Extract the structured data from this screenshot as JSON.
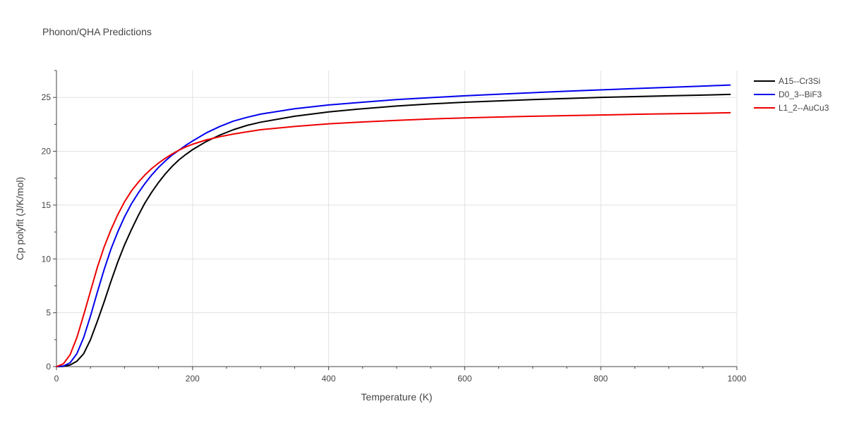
{
  "chart_data": {
    "type": "line",
    "title": "Phonon/QHA Predictions",
    "xlabel": "Temperature (K)",
    "ylabel": "Cp polyfit (J/K/mol)",
    "xlim": [
      0,
      1000
    ],
    "ylim": [
      0,
      27.5
    ],
    "xticks": [
      0,
      200,
      400,
      600,
      800,
      1000
    ],
    "yticks": [
      0,
      5,
      10,
      15,
      20,
      25
    ],
    "grid": true,
    "legend_position": "top-right",
    "series": [
      {
        "name": "A15--Cr3Si",
        "color": "#000000",
        "x": [
          0,
          10,
          20,
          30,
          40,
          50,
          60,
          70,
          80,
          90,
          100,
          110,
          120,
          130,
          140,
          150,
          160,
          170,
          180,
          190,
          200,
          220,
          240,
          260,
          280,
          300,
          350,
          400,
          450,
          500,
          550,
          600,
          650,
          700,
          750,
          800,
          850,
          900,
          950,
          990
        ],
        "y": [
          0,
          0.02,
          0.15,
          0.5,
          1.2,
          2.5,
          4.2,
          6.0,
          7.9,
          9.7,
          11.3,
          12.7,
          14.0,
          15.2,
          16.2,
          17.1,
          17.9,
          18.6,
          19.2,
          19.7,
          20.15,
          20.9,
          21.5,
          22.0,
          22.4,
          22.7,
          23.25,
          23.65,
          23.95,
          24.2,
          24.4,
          24.55,
          24.68,
          24.8,
          24.9,
          25.0,
          25.08,
          25.15,
          25.22,
          25.28
        ]
      },
      {
        "name": "D0_3--BiF3",
        "color": "#0000ee",
        "x": [
          0,
          10,
          20,
          30,
          40,
          50,
          60,
          70,
          80,
          90,
          100,
          110,
          120,
          130,
          140,
          150,
          160,
          170,
          180,
          190,
          200,
          220,
          240,
          260,
          280,
          300,
          350,
          400,
          450,
          500,
          550,
          600,
          650,
          700,
          750,
          800,
          850,
          900,
          950,
          990
        ],
        "y": [
          0,
          0.05,
          0.35,
          1.2,
          2.7,
          4.7,
          6.9,
          9.0,
          10.9,
          12.5,
          13.9,
          15.1,
          16.1,
          17.0,
          17.8,
          18.5,
          19.1,
          19.65,
          20.1,
          20.55,
          20.95,
          21.7,
          22.3,
          22.8,
          23.15,
          23.45,
          23.95,
          24.3,
          24.55,
          24.8,
          24.98,
          25.15,
          25.3,
          25.44,
          25.58,
          25.7,
          25.82,
          25.94,
          26.05,
          26.15
        ]
      },
      {
        "name": "L1_2--AuCu3",
        "color": "#ee0000",
        "x": [
          0,
          10,
          20,
          30,
          40,
          50,
          60,
          70,
          80,
          90,
          100,
          110,
          120,
          130,
          140,
          150,
          160,
          170,
          180,
          190,
          200,
          220,
          240,
          260,
          280,
          300,
          350,
          400,
          450,
          500,
          550,
          600,
          650,
          700,
          750,
          800,
          850,
          900,
          950,
          990
        ],
        "y": [
          0,
          0.25,
          1.1,
          2.7,
          4.8,
          7.0,
          9.2,
          11.1,
          12.7,
          14.1,
          15.3,
          16.3,
          17.1,
          17.8,
          18.4,
          18.9,
          19.35,
          19.75,
          20.1,
          20.4,
          20.65,
          21.05,
          21.35,
          21.6,
          21.8,
          22.0,
          22.3,
          22.55,
          22.72,
          22.87,
          23.0,
          23.1,
          23.18,
          23.25,
          23.31,
          23.37,
          23.43,
          23.48,
          23.53,
          23.58
        ]
      }
    ]
  }
}
